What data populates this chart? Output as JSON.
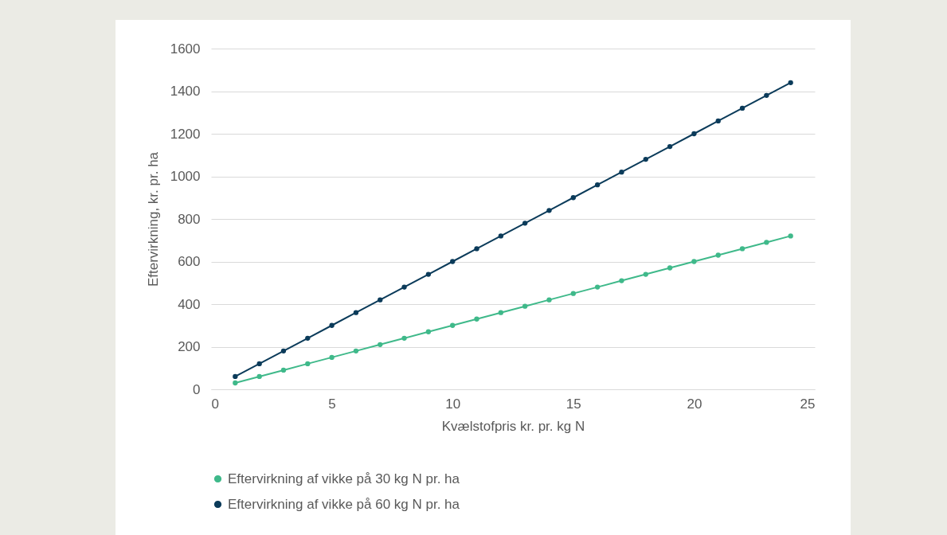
{
  "chart_data": {
    "type": "line",
    "xlabel": "Kvælstofpris kr. pr. kg N",
    "ylabel": "Eftervirkning, kr. pr. ha",
    "x": [
      1,
      2,
      3,
      4,
      5,
      6,
      7,
      8,
      9,
      10,
      11,
      12,
      13,
      14,
      15,
      16,
      17,
      18,
      19,
      20,
      21,
      22,
      23,
      24
    ],
    "series": [
      {
        "name": "Eftervirkning af vikke på 30 kg N pr. ha",
        "color": "#3fb98a",
        "values": [
          30,
          60,
          90,
          120,
          150,
          180,
          210,
          240,
          270,
          300,
          330,
          360,
          390,
          420,
          450,
          480,
          510,
          540,
          570,
          600,
          630,
          660,
          690,
          720
        ]
      },
      {
        "name": "Eftervirkning af  vikke på 60 kg N pr. ha",
        "color": "#0b3b5a",
        "values": [
          60,
          120,
          180,
          240,
          300,
          360,
          420,
          480,
          540,
          600,
          660,
          720,
          780,
          840,
          900,
          960,
          1020,
          1080,
          1140,
          1200,
          1260,
          1320,
          1380,
          1440
        ]
      }
    ],
    "xlim": [
      0,
      25
    ],
    "xticks": [
      0,
      5,
      10,
      15,
      20,
      25
    ],
    "ylim": [
      0,
      1600
    ],
    "yticks": [
      0,
      200,
      400,
      600,
      800,
      1000,
      1200,
      1400,
      1600
    ],
    "grid": "y",
    "legend": "bottom",
    "marker": "circle",
    "line_style": "solid"
  }
}
